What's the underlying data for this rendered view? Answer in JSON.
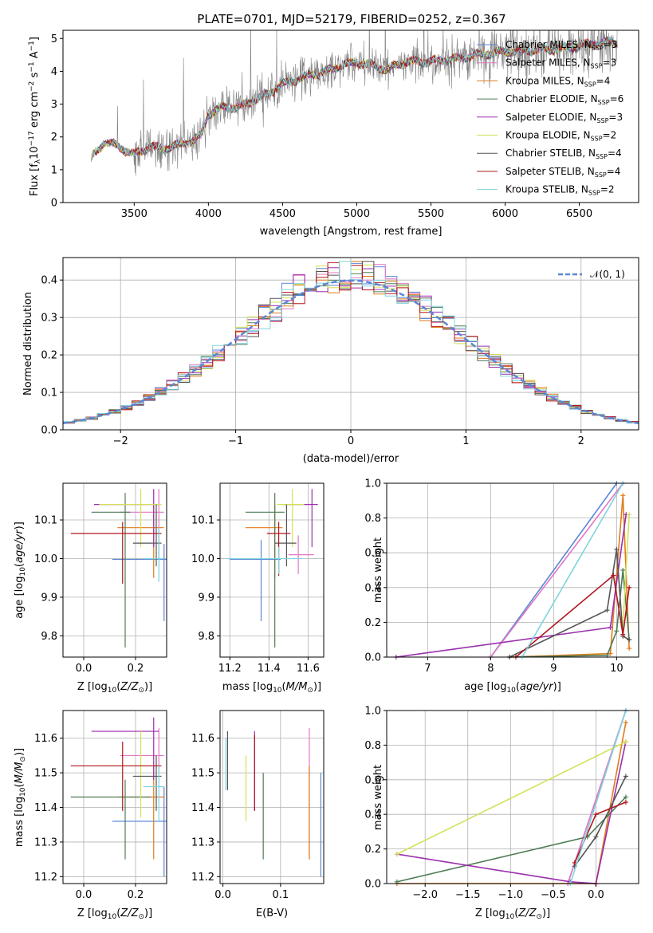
{
  "figure_title": "PLATE=0701, MJD=52179, FIBERID=0252, z=0.367",
  "colors": {
    "Chabrier MILES": "#5b86d6",
    "Salpeter MILES": "#e377c2",
    "Kroupa MILES": "#e07b1c",
    "Chabrier ELODIE": "#4f7c56",
    "Salpeter ELODIE": "#9b2fae",
    "Kroupa ELODIE": "#d4e157",
    "Chabrier STELIB": "#555555",
    "Salpeter STELIB": "#b2161e",
    "Kroupa STELIB": "#7fd3dc",
    "data": "#808080",
    "normal": "#5b86d6"
  },
  "chart_data": [
    {
      "type": "line",
      "name": "spectrum",
      "xlabel": "wavelength [Angstrom, rest frame]",
      "ylabel": "Flux [fλ 10⁻¹⁷ erg cm⁻² s⁻¹ A⁻¹]",
      "xlim": [
        3020,
        6900
      ],
      "ylim": [
        0,
        5.25
      ],
      "xticks": [
        3500,
        4000,
        4500,
        5000,
        5500,
        6000,
        6500
      ],
      "yticks": [
        0,
        1,
        2,
        3,
        4,
        5
      ],
      "legend_placement": "top-right",
      "continuum_x": [
        3210,
        3300,
        3400,
        3500,
        3600,
        3700,
        3800,
        3900,
        3950,
        4000,
        4100,
        4200,
        4300,
        4400,
        4500,
        4600,
        4700,
        4800,
        4900,
        5000,
        5100,
        5200,
        5300,
        5400,
        5500,
        5600,
        5700,
        5800,
        5900,
        6000,
        6200,
        6400,
        6600,
        6760
      ],
      "continuum_y": [
        1.35,
        1.85,
        1.7,
        1.45,
        1.7,
        1.65,
        1.75,
        1.9,
        2.05,
        2.7,
        2.9,
        2.9,
        3.1,
        3.3,
        3.6,
        3.75,
        3.9,
        4.0,
        4.2,
        4.25,
        4.2,
        4.05,
        4.25,
        4.3,
        4.3,
        4.35,
        4.4,
        4.5,
        4.55,
        4.6,
        4.65,
        4.7,
        4.85,
        4.9
      ],
      "legend": [
        {
          "label": "Chabrier MILES, N",
          "n": "3"
        },
        {
          "label": "Salpeter MILES, N",
          "n": "3"
        },
        {
          "label": "Kroupa MILES, N",
          "n": "4"
        },
        {
          "label": "Chabrier ELODIE, N",
          "n": "6"
        },
        {
          "label": "Salpeter ELODIE, N",
          "n": "3"
        },
        {
          "label": "Kroupa ELODIE, N",
          "n": "2"
        },
        {
          "label": "Chabrier STELIB, N",
          "n": "4"
        },
        {
          "label": "Salpeter STELIB, N",
          "n": "4"
        },
        {
          "label": "Kroupa STELIB, N",
          "n": "2"
        }
      ],
      "legend_sub": "SSP"
    },
    {
      "type": "line",
      "name": "residual distribution",
      "xlabel": "(data-model)/error",
      "ylabel": "Normed distribution",
      "xlim": [
        -2.5,
        2.5
      ],
      "ylim": [
        0,
        0.46
      ],
      "xticks": [
        -2,
        -1,
        0,
        1,
        2
      ],
      "yticks": [
        0.0,
        0.1,
        0.2,
        0.3,
        0.4
      ],
      "legend_label": "𝒩(0, 1)",
      "legend_placement": "top-right"
    },
    {
      "type": "scatter",
      "name": "age vs Z",
      "xlabel": "Z [log10(Z/Z☉)]",
      "ylabel": "age [log10(age/yr)]",
      "xlim": [
        -0.08,
        0.32
      ],
      "ylim": [
        9.745,
        10.195
      ],
      "xticks": [
        0.0,
        0.2
      ],
      "yticks": [
        9.8,
        9.9,
        10.0,
        10.1
      ],
      "points": [
        {
          "model": "Chabrier MILES",
          "x": 0.31,
          "y": 9.998,
          "xerr": [
            0.2,
            0.02
          ],
          "yerr": [
            0.16,
            0.04
          ]
        },
        {
          "model": "Salpeter MILES",
          "x": 0.29,
          "y": 10.12,
          "xerr": [
            0.15,
            0.02
          ],
          "yerr": [
            0.12,
            0.06
          ]
        },
        {
          "model": "Kroupa MILES",
          "x": 0.27,
          "y": 10.08,
          "xerr": [
            0.14,
            0.04
          ],
          "yerr": [
            0.13,
            0.06
          ]
        },
        {
          "model": "Chabrier ELODIE",
          "x": 0.16,
          "y": 10.12,
          "xerr": [
            0.13,
            0.02
          ],
          "yerr": [
            0.35,
            0.05
          ]
        },
        {
          "model": "Salpeter ELODIE",
          "x": 0.27,
          "y": 10.14,
          "xerr": [
            0.23,
            0.02
          ],
          "yerr": [
            0.11,
            0.04
          ]
        },
        {
          "model": "Kroupa ELODIE",
          "x": 0.22,
          "y": 10.14,
          "xerr": [
            0.16,
            0.08
          ],
          "yerr": [
            0.11,
            0.04
          ]
        },
        {
          "model": "Chabrier STELIB",
          "x": 0.28,
          "y": 10.04,
          "xerr": [
            0.09,
            0.02
          ],
          "yerr": [
            0.06,
            0.1
          ]
        },
        {
          "model": "Salpeter STELIB",
          "x": 0.15,
          "y": 10.065,
          "xerr": [
            0.2,
            0.15
          ],
          "yerr": [
            0.13,
            0.03
          ]
        },
        {
          "model": "Kroupa STELIB",
          "x": 0.29,
          "y": 10.0,
          "xerr": [
            0.06,
            0.02
          ],
          "yerr": [
            0.06,
            0.08
          ]
        }
      ]
    },
    {
      "type": "scatter",
      "name": "age vs mass",
      "xlabel": "mass [log10(M/M☉)]",
      "ylabel": "",
      "xlim": [
        11.15,
        11.68
      ],
      "ylim": [
        9.745,
        10.195
      ],
      "xticks": [
        11.2,
        11.4,
        11.6
      ],
      "yticks": [
        9.8,
        9.9,
        10.0,
        10.1
      ],
      "points": [
        {
          "model": "Chabrier MILES",
          "x": 11.36,
          "y": 9.998,
          "xerr": [
            0.16,
            0.1
          ],
          "yerr": [
            0.16,
            0.05
          ]
        },
        {
          "model": "Salpeter MILES",
          "x": 11.55,
          "y": 10.01,
          "xerr": [
            0.05,
            0.08
          ],
          "yerr": [
            0.05,
            0.05
          ]
        },
        {
          "model": "Kroupa MILES",
          "x": 11.43,
          "y": 10.08,
          "xerr": [
            0.15,
            0.04
          ],
          "yerr": [
            0.13,
            0.06
          ]
        },
        {
          "model": "Chabrier ELODIE",
          "x": 11.43,
          "y": 10.12,
          "xerr": [
            0.15,
            0.05
          ],
          "yerr": [
            0.35,
            0.05
          ]
        },
        {
          "model": "Salpeter ELODIE",
          "x": 11.62,
          "y": 10.14,
          "xerr": [
            0.15,
            0.03
          ],
          "yerr": [
            0.11,
            0.04
          ]
        },
        {
          "model": "Kroupa ELODIE",
          "x": 11.52,
          "y": 10.14,
          "xerr": [
            0.08,
            0.06
          ],
          "yerr": [
            0.11,
            0.04
          ]
        },
        {
          "model": "Chabrier STELIB",
          "x": 11.49,
          "y": 10.04,
          "xerr": [
            0.06,
            0.05
          ],
          "yerr": [
            0.06,
            0.1
          ]
        },
        {
          "model": "Salpeter STELIB",
          "x": 11.45,
          "y": 10.065,
          "xerr": [
            0.06,
            0.06
          ],
          "yerr": [
            0.11,
            0.03
          ]
        },
        {
          "model": "Kroupa STELIB",
          "x": 11.45,
          "y": 10.0,
          "xerr": [
            0.27,
            0.12
          ],
          "yerr": [
            0.04,
            0.03
          ]
        }
      ]
    },
    {
      "type": "line",
      "name": "mass weight vs age",
      "xlabel": "age [log10(age/yr)]",
      "ylabel": "mass weight",
      "xlim": [
        6.35,
        10.35
      ],
      "ylim": [
        0,
        1.0
      ],
      "xticks": [
        7,
        8,
        9,
        10
      ],
      "yticks": [
        0.0,
        0.2,
        0.4,
        0.6,
        0.8,
        1.0
      ],
      "series": [
        {
          "model": "Chabrier MILES",
          "x": [
            8.0,
            10.0
          ],
          "y": [
            0.0,
            1.0
          ]
        },
        {
          "model": "Salpeter MILES",
          "x": [
            8.0,
            10.1
          ],
          "y": [
            0.0,
            1.0
          ]
        },
        {
          "model": "Kroupa MILES",
          "x": [
            8.3,
            9.9,
            10.1,
            10.2
          ],
          "y": [
            0.0,
            0.02,
            0.93,
            0.05
          ]
        },
        {
          "model": "Chabrier ELODIE",
          "x": [
            8.3,
            9.85,
            10.0,
            10.1,
            10.2
          ],
          "y": [
            0.0,
            0.01,
            0.15,
            0.5,
            0.1
          ]
        },
        {
          "model": "Salpeter ELODIE",
          "x": [
            6.5,
            9.9,
            10.15
          ],
          "y": [
            0.0,
            0.17,
            0.82
          ]
        },
        {
          "model": "Kroupa ELODIE",
          "x": [
            10.1,
            10.2
          ],
          "y": [
            0.18,
            0.82
          ]
        },
        {
          "model": "Chabrier STELIB",
          "x": [
            8.3,
            9.85,
            10.0,
            10.1,
            10.2
          ],
          "y": [
            0.0,
            0.27,
            0.62,
            0.12,
            0.1
          ]
        },
        {
          "model": "Salpeter STELIB",
          "x": [
            8.4,
            9.95,
            10.1,
            10.2
          ],
          "y": [
            0.0,
            0.47,
            0.13,
            0.4
          ]
        },
        {
          "model": "Kroupa STELIB",
          "x": [
            8.5,
            10.1
          ],
          "y": [
            0.0,
            1.0
          ]
        }
      ]
    },
    {
      "type": "scatter",
      "name": "mass vs Z",
      "xlabel": "Z [log10(Z/Z☉)]",
      "ylabel": "mass [log10(M/M☉)]",
      "xlim": [
        -0.08,
        0.32
      ],
      "ylim": [
        11.18,
        11.68
      ],
      "xticks": [
        0.0,
        0.2
      ],
      "yticks": [
        11.2,
        11.3,
        11.4,
        11.5,
        11.6
      ],
      "points": [
        {
          "model": "Chabrier MILES",
          "x": 0.31,
          "y": 11.36,
          "xerr": [
            0.2,
            0.02
          ],
          "yerr": [
            0.16,
            0.1
          ]
        },
        {
          "model": "Salpeter MILES",
          "x": 0.29,
          "y": 11.55,
          "xerr": [
            0.15,
            0.02
          ],
          "yerr": [
            0.05,
            0.08
          ]
        },
        {
          "model": "Kroupa MILES",
          "x": 0.27,
          "y": 11.43,
          "xerr": [
            0.14,
            0.04
          ],
          "yerr": [
            0.18,
            0.09
          ]
        },
        {
          "model": "Chabrier ELODIE",
          "x": 0.16,
          "y": 11.43,
          "xerr": [
            0.21,
            0.1
          ],
          "yerr": [
            0.18,
            0.05
          ]
        },
        {
          "model": "Salpeter ELODIE",
          "x": 0.27,
          "y": 11.62,
          "xerr": [
            0.24,
            0.02
          ],
          "yerr": [
            0.14,
            0.04
          ]
        },
        {
          "model": "Kroupa ELODIE",
          "x": 0.22,
          "y": 11.52,
          "xerr": [
            0.16,
            0.08
          ],
          "yerr": [
            0.15,
            0.1
          ]
        },
        {
          "model": "Chabrier STELIB",
          "x": 0.28,
          "y": 11.49,
          "xerr": [
            0.09,
            0.02
          ],
          "yerr": [
            0.1,
            0.06
          ]
        },
        {
          "model": "Salpeter STELIB",
          "x": 0.15,
          "y": 11.52,
          "xerr": [
            0.2,
            0.15
          ],
          "yerr": [
            0.13,
            0.07
          ]
        },
        {
          "model": "Kroupa STELIB",
          "x": 0.29,
          "y": 11.46,
          "xerr": [
            0.06,
            0.02
          ],
          "yerr": [
            0.1,
            0.06
          ]
        }
      ]
    },
    {
      "type": "scatter",
      "name": "mass vs E(B-V)",
      "xlabel": "E(B-V)",
      "ylabel": "",
      "xlim": [
        -0.005,
        0.175
      ],
      "ylim": [
        11.18,
        11.68
      ],
      "xticks": [
        0.0,
        0.1
      ],
      "yticks": [
        11.2,
        11.3,
        11.4,
        11.5,
        11.6
      ],
      "points": [
        {
          "model": "Chabrier MILES",
          "x": 0.17,
          "y": 11.36,
          "yerr": [
            0.16,
            0.14
          ]
        },
        {
          "model": "Salpeter MILES",
          "x": 0.15,
          "y": 11.5,
          "yerr": [
            0.25,
            0.13
          ]
        },
        {
          "model": "Kroupa MILES",
          "x": 0.15,
          "y": 11.4,
          "yerr": [
            0.15,
            0.12
          ]
        },
        {
          "model": "Chabrier ELODIE",
          "x": 0.07,
          "y": 11.4,
          "yerr": [
            0.15,
            0.1
          ]
        },
        {
          "model": "Salpeter ELODIE",
          "x": 0.055,
          "y": 11.5,
          "yerr": [
            0.11,
            0.12
          ]
        },
        {
          "model": "Kroupa ELODIE",
          "x": 0.04,
          "y": 11.46,
          "yerr": [
            0.1,
            0.09
          ]
        },
        {
          "model": "Chabrier STELIB",
          "x": 0.008,
          "y": 11.52,
          "yerr": [
            0.07,
            0.1
          ]
        },
        {
          "model": "Salpeter STELIB",
          "x": 0.055,
          "y": 11.5,
          "yerr": [
            0.11,
            0.11
          ]
        },
        {
          "model": "Kroupa STELIB",
          "x": 0.005,
          "y": 11.5,
          "yerr": [
            0.05,
            0.1
          ]
        }
      ]
    },
    {
      "type": "line",
      "name": "mass weight vs Z",
      "xlabel": "Z [log10(Z/Z☉)]",
      "ylabel": "mass weight",
      "xlim": [
        -2.45,
        0.5
      ],
      "ylim": [
        0,
        1.0
      ],
      "xticks": [
        -2.0,
        -1.5,
        -1.0,
        -0.5,
        0.0
      ],
      "yticks": [
        0.0,
        0.2,
        0.4,
        0.6,
        0.8,
        1.0
      ],
      "series": [
        {
          "model": "Chabrier MILES",
          "x": [
            -0.33,
            0.35
          ],
          "y": [
            0.0,
            1.0
          ]
        },
        {
          "model": "Salpeter MILES",
          "x": [
            -0.33,
            0.35
          ],
          "y": [
            0.0,
            1.0
          ]
        },
        {
          "model": "Kroupa MILES",
          "x": [
            -2.33,
            0.0,
            0.35
          ],
          "y": [
            0.0,
            0.0,
            0.93
          ]
        },
        {
          "model": "Chabrier ELODIE",
          "x": [
            -2.33,
            -0.1,
            0.35
          ],
          "y": [
            0.01,
            0.27,
            0.5
          ]
        },
        {
          "model": "Salpeter ELODIE",
          "x": [
            -2.33,
            -0.3,
            0.0,
            0.35
          ],
          "y": [
            0.17,
            0.01,
            0.0,
            0.82
          ]
        },
        {
          "model": "Kroupa ELODIE",
          "x": [
            -2.33,
            0.35
          ],
          "y": [
            0.17,
            0.82
          ]
        },
        {
          "model": "Chabrier STELIB",
          "x": [
            -0.25,
            0.0,
            0.35
          ],
          "y": [
            0.1,
            0.27,
            0.62
          ]
        },
        {
          "model": "Salpeter STELIB",
          "x": [
            -0.25,
            0.0,
            0.35
          ],
          "y": [
            0.12,
            0.4,
            0.47
          ]
        },
        {
          "model": "Kroupa STELIB",
          "x": [
            -0.3,
            0.35
          ],
          "y": [
            0.0,
            1.0
          ]
        }
      ]
    }
  ]
}
